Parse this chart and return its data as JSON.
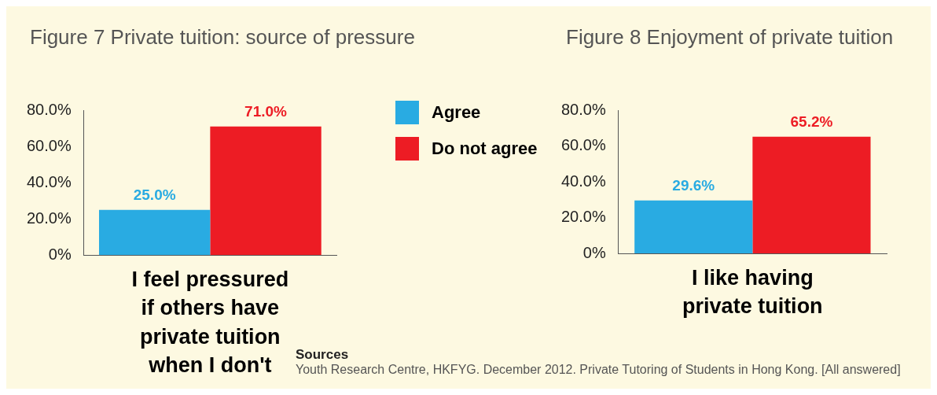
{
  "chart_data": [
    {
      "type": "bar",
      "title": "Figure 7 Private tuition: source of pressure",
      "categories": [
        "I feel pressured if others have private tuition when I don't"
      ],
      "series": [
        {
          "name": "Agree",
          "color": "#29abe2",
          "values": [
            25.0
          ],
          "value_labels": [
            "25.0%"
          ]
        },
        {
          "name": "Do not agree",
          "color": "#ed1c24",
          "values": [
            71.0
          ],
          "value_labels": [
            "71.0%"
          ]
        }
      ],
      "ylim": [
        0,
        80
      ],
      "yticks": [
        {
          "value": 0,
          "label": "0%"
        },
        {
          "value": 20,
          "label": "20.0%"
        },
        {
          "value": 40,
          "label": "40.0%"
        },
        {
          "value": 60,
          "label": "60.0%"
        },
        {
          "value": 80,
          "label": "80.0%"
        }
      ],
      "grid": false,
      "legend": "right"
    },
    {
      "type": "bar",
      "title": "Figure 8 Enjoyment of private tuition",
      "categories": [
        "I like having private tuition"
      ],
      "series": [
        {
          "color": "#29abe2",
          "values": [
            29.6
          ],
          "value_labels": [
            "29.6%"
          ]
        },
        {
          "color": "#ed1c24",
          "values": [
            65.2
          ],
          "value_labels": [
            "65.2%"
          ]
        }
      ],
      "ylim": [
        0,
        80
      ],
      "yticks": [
        {
          "value": 0,
          "label": "0%"
        },
        {
          "value": 20,
          "label": "20.0%"
        },
        {
          "value": 40,
          "label": "40.0%"
        },
        {
          "value": 60,
          "label": "60.0%"
        },
        {
          "value": 80,
          "label": "80.0%"
        }
      ],
      "grid": false,
      "annotations": [
        "Sources",
        "Youth Research Centre, HKFYG. December 2012. Private Tutoring of Students in Hong Kong. [All answered]"
      ]
    }
  ]
}
